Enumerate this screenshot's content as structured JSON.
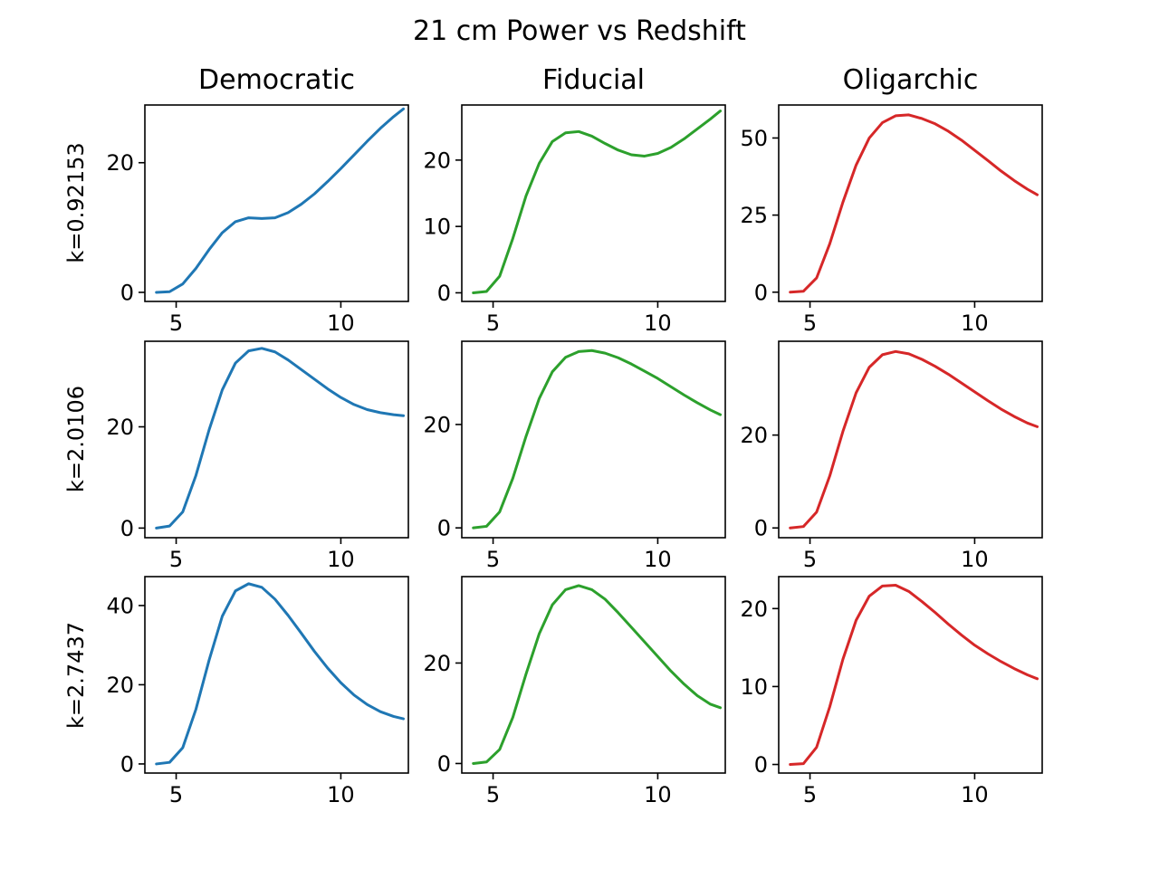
{
  "chart_data": {
    "type": "line",
    "title": "21 cm Power vs Redshift",
    "column_titles": [
      "Democratic",
      "Fiducial",
      "Oligarchic"
    ],
    "row_labels": [
      "k=0.92153",
      "k=2.0106",
      "k=2.7437"
    ],
    "colors": {
      "Democratic": "#1f77b4",
      "Fiducial": "#2ca02c",
      "Oligarchic": "#d62728"
    },
    "x": [
      4.4,
      4.8,
      5.2,
      5.6,
      6.0,
      6.4,
      6.8,
      7.2,
      7.6,
      8.0,
      8.4,
      8.8,
      9.2,
      9.6,
      10.0,
      10.4,
      10.8,
      11.2,
      11.6,
      11.9
    ],
    "xlim": [
      4.05,
      12.05
    ],
    "xticks": [
      5,
      10
    ],
    "xtick_labels": [
      "5",
      "10"
    ],
    "panels": [
      {
        "row": 0,
        "col": 0,
        "ylim": [
          -1.4,
          28.9
        ],
        "yticks": [
          0,
          20
        ],
        "ytick_labels": [
          "0",
          "20"
        ],
        "y": [
          0,
          0.1,
          1.3,
          3.7,
          6.6,
          9.2,
          10.9,
          11.5,
          11.4,
          11.5,
          12.3,
          13.6,
          15.2,
          17.1,
          19.1,
          21.2,
          23.3,
          25.3,
          27.1,
          28.3
        ]
      },
      {
        "row": 0,
        "col": 1,
        "ylim": [
          -1.3,
          28.3
        ],
        "yticks": [
          0,
          10,
          20
        ],
        "ytick_labels": [
          "0",
          "10",
          "20"
        ],
        "y": [
          0,
          0.2,
          2.5,
          8.2,
          14.6,
          19.5,
          22.8,
          24.1,
          24.3,
          23.6,
          22.5,
          21.5,
          20.8,
          20.6,
          21.0,
          21.9,
          23.2,
          24.7,
          26.2,
          27.4
        ]
      },
      {
        "row": 0,
        "col": 2,
        "ylim": [
          -3,
          60.7
        ],
        "yticks": [
          0,
          25,
          50
        ],
        "ytick_labels": [
          "0",
          "25",
          "50"
        ],
        "y": [
          0,
          0.3,
          4.6,
          15.7,
          29.2,
          41.2,
          50.0,
          55.0,
          57.2,
          57.5,
          56.3,
          54.6,
          52.2,
          49.3,
          46.0,
          42.7,
          39.3,
          36.2,
          33.4,
          31.6
        ]
      },
      {
        "row": 1,
        "col": 0,
        "ylim": [
          -1.9,
          36.9
        ],
        "yticks": [
          0,
          20
        ],
        "ytick_labels": [
          "0",
          "20"
        ],
        "y": [
          0,
          0.4,
          3.2,
          10.4,
          19.4,
          27.3,
          32.6,
          35.0,
          35.5,
          34.8,
          33.2,
          31.3,
          29.4,
          27.5,
          25.8,
          24.4,
          23.4,
          22.8,
          22.4,
          22.2
        ]
      },
      {
        "row": 1,
        "col": 1,
        "ylim": [
          -1.9,
          36.1
        ],
        "yticks": [
          0,
          20
        ],
        "ytick_labels": [
          "0",
          "20"
        ],
        "y": [
          0,
          0.3,
          3.1,
          9.6,
          17.7,
          25.0,
          30.2,
          33.0,
          34.1,
          34.3,
          33.8,
          32.9,
          31.7,
          30.3,
          28.9,
          27.3,
          25.7,
          24.2,
          22.8,
          21.9
        ]
      },
      {
        "row": 1,
        "col": 2,
        "ylim": [
          -2.1,
          40.2
        ],
        "yticks": [
          0,
          20
        ],
        "ytick_labels": [
          "0",
          "20"
        ],
        "y": [
          0,
          0.3,
          3.4,
          11.2,
          20.8,
          29.1,
          34.6,
          37.3,
          38.0,
          37.5,
          36.3,
          34.8,
          33.1,
          31.2,
          29.3,
          27.4,
          25.6,
          24.0,
          22.6,
          21.8
        ]
      },
      {
        "row": 2,
        "col": 0,
        "ylim": [
          -2.3,
          47.3
        ],
        "yticks": [
          0,
          20,
          40
        ],
        "ytick_labels": [
          "0",
          "20",
          "40"
        ],
        "y": [
          0,
          0.4,
          4.1,
          13.8,
          26.2,
          37.3,
          43.7,
          45.5,
          44.6,
          41.6,
          37.5,
          33.0,
          28.4,
          24.2,
          20.5,
          17.4,
          15.0,
          13.2,
          12.0,
          11.4
        ]
      },
      {
        "row": 2,
        "col": 1,
        "ylim": [
          -1.9,
          37.2
        ],
        "yticks": [
          0,
          20
        ],
        "ytick_labels": [
          "0",
          "20"
        ],
        "y": [
          0,
          0.3,
          2.8,
          9.2,
          17.8,
          25.8,
          31.6,
          34.6,
          35.4,
          34.6,
          32.7,
          30.0,
          27.1,
          24.2,
          21.3,
          18.4,
          15.8,
          13.5,
          11.8,
          11.1
        ]
      },
      {
        "row": 2,
        "col": 2,
        "ylim": [
          -1.1,
          24.1
        ],
        "yticks": [
          0,
          10,
          20
        ],
        "ytick_labels": [
          "0",
          "10",
          "20"
        ],
        "y": [
          0,
          0.1,
          2.2,
          7.4,
          13.5,
          18.5,
          21.6,
          22.9,
          23.0,
          22.2,
          20.9,
          19.5,
          18.0,
          16.6,
          15.3,
          14.2,
          13.2,
          12.3,
          11.5,
          11.0
        ]
      }
    ]
  }
}
